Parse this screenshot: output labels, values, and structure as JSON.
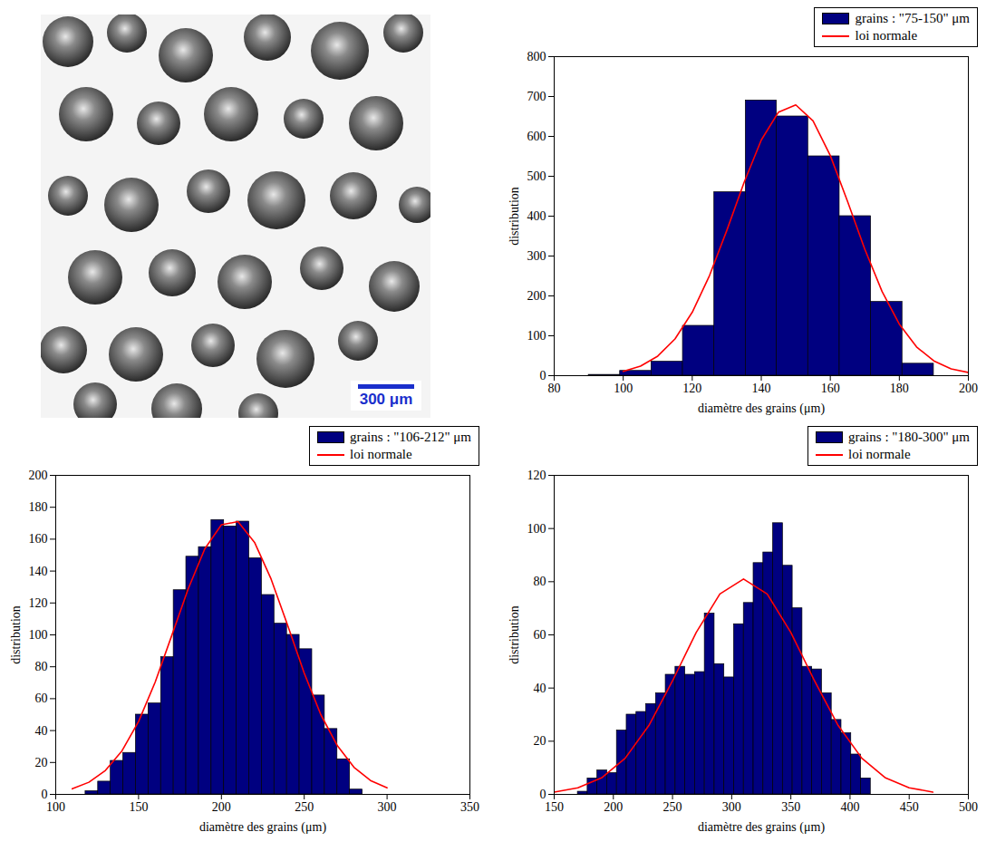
{
  "chart_data": [
    {
      "type": "image",
      "scale_bar": "300 μm",
      "color": "#1a2fcc"
    },
    {
      "type": "histogram",
      "name": "grains : \"75-150\" μm",
      "color": "#000080",
      "xlabel": "diamètre des grains (μm)",
      "ylabel": "distribution",
      "bins": [
        90,
        99.1,
        108.2,
        117.3,
        126.4,
        135.5,
        144.5,
        153.6,
        162.7,
        171.8,
        180.9,
        190
      ],
      "values": [
        2,
        12,
        35,
        125,
        460,
        690,
        650,
        550,
        400,
        185,
        30
      ],
      "series": [
        {
          "name": "loi normale",
          "type": "line",
          "color": "#ff0000",
          "x": [
            100,
            105,
            110,
            115,
            120,
            125,
            130,
            135,
            140,
            145,
            150,
            155,
            160,
            165,
            170,
            175,
            180,
            185,
            190,
            195,
            200
          ],
          "values": [
            11,
            24,
            49,
            92,
            159,
            251,
            364,
            484,
            591,
            661,
            679,
            639,
            552,
            437,
            317,
            211,
            129,
            72,
            37,
            17,
            8
          ]
        }
      ],
      "xlim": [
        80,
        200
      ],
      "xticks": [
        80,
        100,
        120,
        140,
        160,
        180,
        200
      ],
      "ylim": [
        0,
        800
      ],
      "yticks": [
        0,
        100,
        200,
        300,
        400,
        500,
        600,
        700,
        800
      ],
      "legend": "top"
    },
    {
      "type": "histogram",
      "name": "grains : \"106-212\" μm",
      "color": "#000080",
      "xlabel": "diamètre des grains (μm)",
      "ylabel": "distribution",
      "bins": [
        118,
        125.6,
        133.2,
        140.8,
        148.4,
        156,
        163.6,
        171.2,
        178.8,
        186.4,
        194,
        201.6,
        209.2,
        216.8,
        224.4,
        232,
        239.6,
        247.2,
        254.8,
        262.4,
        270,
        277.6,
        285.2
      ],
      "values": [
        2,
        8,
        21,
        26,
        50,
        57,
        86,
        128,
        149,
        155,
        172,
        168,
        171,
        148,
        125,
        107,
        100,
        91,
        62,
        41,
        22,
        3
      ],
      "series": [
        {
          "name": "loi normale",
          "type": "line",
          "color": "#ff0000",
          "x": [
            110,
            120,
            130,
            140,
            150,
            160,
            170,
            180,
            190,
            200,
            210,
            220,
            230,
            240,
            250,
            260,
            270,
            280,
            290,
            300
          ],
          "values": [
            3.5,
            7.6,
            15,
            27.3,
            45.7,
            70.3,
            99.5,
            129,
            154,
            169,
            171,
            158,
            135,
            106,
            76,
            50,
            30.5,
            17,
            8.7,
            4.1
          ]
        }
      ],
      "xlim": [
        100,
        350
      ],
      "xticks": [
        100,
        150,
        200,
        250,
        300,
        350
      ],
      "ylim": [
        0,
        200
      ],
      "yticks": [
        0,
        20,
        40,
        60,
        80,
        100,
        120,
        140,
        160,
        180,
        200
      ],
      "legend": "top"
    },
    {
      "type": "histogram",
      "name": "grains : \"180-300\" μm",
      "color": "#000080",
      "xlabel": "diamètre des grains (μm)",
      "ylabel": "distribution",
      "bins": [
        170,
        178.25,
        186.5,
        194.75,
        203,
        211.25,
        219.5,
        227.75,
        236,
        244.25,
        252.5,
        260.75,
        269,
        277.25,
        285.5,
        293.75,
        302,
        310.25,
        318.5,
        326.75,
        335,
        343.25,
        351.5,
        359.75,
        368,
        376.25,
        384.5,
        392.75,
        401,
        409.25,
        417.5
      ],
      "values": [
        1,
        6,
        9,
        8,
        24,
        30,
        31,
        34,
        38,
        45,
        48,
        45,
        46,
        68,
        49,
        44,
        64,
        72,
        87,
        91,
        102,
        86,
        70,
        48,
        47,
        38,
        28,
        23,
        15,
        6
      ],
      "series": [
        {
          "name": "loi normale",
          "type": "line",
          "color": "#ff0000",
          "x": [
            150,
            170,
            190,
            210,
            230,
            250,
            270,
            290,
            310,
            330,
            350,
            370,
            390,
            410,
            430,
            450,
            470
          ],
          "values": [
            0.85,
            2.5,
            6.2,
            13.6,
            25.9,
            42.7,
            60.9,
            75.4,
            81,
            75.4,
            60.9,
            42.7,
            25.9,
            13.6,
            6.2,
            2.5,
            0.85
          ]
        }
      ],
      "xlim": [
        150,
        500
      ],
      "xticks": [
        150,
        200,
        250,
        300,
        350,
        400,
        450,
        500
      ],
      "ylim": [
        0,
        120
      ],
      "yticks": [
        0,
        20,
        40,
        60,
        80,
        100,
        120
      ],
      "legend": "top"
    }
  ]
}
